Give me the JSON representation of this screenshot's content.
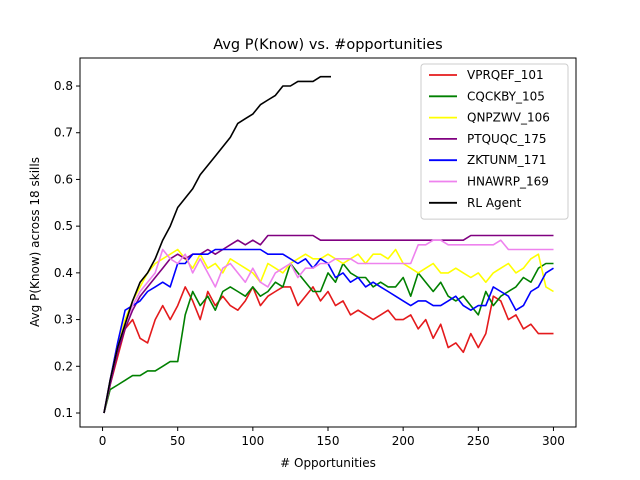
{
  "chart_data": {
    "type": "line",
    "title": "Avg P(Know) vs. #opportunities",
    "xlabel": "# Opportunities",
    "ylabel": "Avg P(Know) across 18 skills",
    "xlim": [
      -15,
      315
    ],
    "ylim": [
      0.07,
      0.86
    ],
    "xticks": [
      "0",
      "50",
      "100",
      "150",
      "200",
      "250",
      "300"
    ],
    "yticks": [
      "0.1",
      "0.2",
      "0.3",
      "0.4",
      "0.5",
      "0.6",
      "0.7",
      "0.8"
    ],
    "grid": false,
    "legend_position": "top-right",
    "series": [
      {
        "name": "VPRQEF_101",
        "color": "#e41a1c",
        "x": [
          1,
          5,
          10,
          15,
          20,
          25,
          30,
          35,
          40,
          45,
          50,
          55,
          60,
          65,
          70,
          75,
          80,
          85,
          90,
          95,
          100,
          105,
          110,
          115,
          120,
          125,
          130,
          135,
          140,
          145,
          150,
          155,
          160,
          165,
          170,
          175,
          180,
          185,
          190,
          195,
          200,
          205,
          210,
          215,
          220,
          225,
          230,
          235,
          240,
          245,
          250,
          255,
          260,
          265,
          270,
          275,
          280,
          285,
          290,
          295,
          300
        ],
        "y": [
          0.1,
          0.16,
          0.22,
          0.28,
          0.3,
          0.26,
          0.25,
          0.3,
          0.33,
          0.3,
          0.33,
          0.37,
          0.34,
          0.3,
          0.36,
          0.33,
          0.35,
          0.33,
          0.32,
          0.34,
          0.37,
          0.33,
          0.35,
          0.36,
          0.37,
          0.37,
          0.33,
          0.35,
          0.37,
          0.34,
          0.36,
          0.33,
          0.34,
          0.31,
          0.32,
          0.31,
          0.3,
          0.31,
          0.32,
          0.3,
          0.3,
          0.31,
          0.28,
          0.3,
          0.26,
          0.29,
          0.24,
          0.25,
          0.23,
          0.27,
          0.24,
          0.27,
          0.35,
          0.34,
          0.3,
          0.31,
          0.28,
          0.29,
          0.27,
          0.27,
          0.27
        ]
      },
      {
        "name": "CQCKBY_105",
        "color": "#008000",
        "x": [
          1,
          5,
          10,
          15,
          20,
          25,
          30,
          35,
          40,
          45,
          50,
          55,
          60,
          65,
          70,
          75,
          80,
          85,
          90,
          95,
          100,
          105,
          110,
          115,
          120,
          125,
          130,
          135,
          140,
          145,
          150,
          155,
          160,
          165,
          170,
          175,
          180,
          185,
          190,
          195,
          200,
          205,
          210,
          215,
          220,
          225,
          230,
          235,
          240,
          245,
          250,
          255,
          260,
          265,
          270,
          275,
          280,
          285,
          290,
          295,
          300
        ],
        "y": [
          0.1,
          0.15,
          0.16,
          0.17,
          0.18,
          0.18,
          0.19,
          0.19,
          0.2,
          0.21,
          0.21,
          0.31,
          0.36,
          0.33,
          0.35,
          0.32,
          0.36,
          0.37,
          0.36,
          0.35,
          0.37,
          0.35,
          0.36,
          0.38,
          0.37,
          0.42,
          0.4,
          0.38,
          0.36,
          0.36,
          0.4,
          0.38,
          0.42,
          0.4,
          0.39,
          0.39,
          0.37,
          0.38,
          0.37,
          0.37,
          0.39,
          0.35,
          0.4,
          0.38,
          0.36,
          0.38,
          0.35,
          0.34,
          0.35,
          0.33,
          0.31,
          0.36,
          0.33,
          0.35,
          0.36,
          0.37,
          0.39,
          0.38,
          0.41,
          0.42,
          0.42
        ]
      },
      {
        "name": "QNPZWV_106",
        "color": "#ffff00",
        "x": [
          1,
          5,
          10,
          15,
          20,
          25,
          30,
          35,
          40,
          45,
          50,
          55,
          60,
          65,
          70,
          75,
          80,
          85,
          90,
          95,
          100,
          105,
          110,
          115,
          120,
          125,
          130,
          135,
          140,
          145,
          150,
          155,
          160,
          165,
          170,
          175,
          180,
          185,
          190,
          195,
          200,
          205,
          210,
          215,
          220,
          225,
          230,
          235,
          240,
          245,
          250,
          255,
          260,
          265,
          270,
          275,
          280,
          285,
          290,
          295,
          300
        ],
        "y": [
          0.1,
          0.16,
          0.24,
          0.3,
          0.34,
          0.37,
          0.4,
          0.42,
          0.43,
          0.44,
          0.45,
          0.43,
          0.41,
          0.44,
          0.41,
          0.42,
          0.4,
          0.43,
          0.42,
          0.41,
          0.4,
          0.38,
          0.42,
          0.41,
          0.4,
          0.42,
          0.43,
          0.44,
          0.43,
          0.43,
          0.44,
          0.43,
          0.42,
          0.43,
          0.44,
          0.42,
          0.44,
          0.44,
          0.43,
          0.45,
          0.42,
          0.41,
          0.4,
          0.41,
          0.42,
          0.4,
          0.4,
          0.41,
          0.4,
          0.39,
          0.4,
          0.38,
          0.4,
          0.41,
          0.42,
          0.4,
          0.41,
          0.43,
          0.44,
          0.37,
          0.36
        ]
      },
      {
        "name": "PTQUQC_175",
        "color": "#800080",
        "x": [
          1,
          5,
          10,
          15,
          20,
          25,
          30,
          35,
          40,
          45,
          50,
          55,
          60,
          65,
          70,
          75,
          80,
          85,
          90,
          95,
          100,
          105,
          110,
          115,
          120,
          125,
          130,
          135,
          140,
          145,
          150,
          155,
          160,
          165,
          170,
          175,
          180,
          185,
          190,
          195,
          200,
          205,
          210,
          215,
          220,
          225,
          230,
          235,
          240,
          245,
          250,
          255,
          260,
          265,
          270,
          275,
          280,
          285,
          290,
          295,
          300
        ],
        "y": [
          0.1,
          0.16,
          0.23,
          0.28,
          0.32,
          0.35,
          0.37,
          0.39,
          0.41,
          0.43,
          0.44,
          0.43,
          0.44,
          0.44,
          0.45,
          0.44,
          0.45,
          0.46,
          0.47,
          0.46,
          0.47,
          0.46,
          0.48,
          0.48,
          0.48,
          0.48,
          0.48,
          0.48,
          0.48,
          0.47,
          0.47,
          0.47,
          0.47,
          0.47,
          0.47,
          0.47,
          0.47,
          0.47,
          0.47,
          0.47,
          0.47,
          0.47,
          0.47,
          0.47,
          0.47,
          0.47,
          0.47,
          0.47,
          0.47,
          0.48,
          0.48,
          0.48,
          0.48,
          0.48,
          0.48,
          0.48,
          0.48,
          0.48,
          0.48,
          0.48,
          0.48
        ]
      },
      {
        "name": "ZKTUNM_171",
        "color": "#0000ff",
        "x": [
          1,
          5,
          10,
          15,
          20,
          25,
          30,
          35,
          40,
          45,
          50,
          55,
          60,
          65,
          70,
          75,
          80,
          85,
          90,
          95,
          100,
          105,
          110,
          115,
          120,
          125,
          130,
          135,
          140,
          145,
          150,
          155,
          160,
          165,
          170,
          175,
          180,
          185,
          190,
          195,
          200,
          205,
          210,
          215,
          220,
          225,
          230,
          235,
          240,
          245,
          250,
          255,
          260,
          265,
          270,
          275,
          280,
          285,
          290,
          295,
          300
        ],
        "y": [
          0.1,
          0.17,
          0.25,
          0.32,
          0.33,
          0.34,
          0.36,
          0.37,
          0.38,
          0.37,
          0.42,
          0.42,
          0.44,
          0.44,
          0.44,
          0.45,
          0.45,
          0.45,
          0.45,
          0.45,
          0.45,
          0.45,
          0.44,
          0.44,
          0.44,
          0.43,
          0.42,
          0.43,
          0.41,
          0.43,
          0.42,
          0.39,
          0.4,
          0.38,
          0.39,
          0.37,
          0.38,
          0.37,
          0.36,
          0.35,
          0.34,
          0.33,
          0.34,
          0.34,
          0.33,
          0.33,
          0.34,
          0.35,
          0.33,
          0.32,
          0.33,
          0.33,
          0.37,
          0.36,
          0.35,
          0.32,
          0.33,
          0.36,
          0.37,
          0.4,
          0.41
        ]
      },
      {
        "name": "HNAWRP_169",
        "color": "#ee82ee",
        "x": [
          1,
          5,
          10,
          15,
          20,
          25,
          30,
          35,
          40,
          45,
          50,
          55,
          60,
          65,
          70,
          75,
          80,
          85,
          90,
          95,
          100,
          105,
          110,
          115,
          120,
          125,
          130,
          135,
          140,
          145,
          150,
          155,
          160,
          165,
          170,
          175,
          180,
          185,
          190,
          195,
          200,
          205,
          210,
          215,
          220,
          225,
          230,
          235,
          240,
          245,
          250,
          255,
          260,
          265,
          270,
          275,
          280,
          285,
          290,
          295,
          300
        ],
        "y": [
          0.1,
          0.17,
          0.24,
          0.29,
          0.33,
          0.36,
          0.38,
          0.4,
          0.45,
          0.43,
          0.42,
          0.44,
          0.4,
          0.43,
          0.4,
          0.37,
          0.41,
          0.42,
          0.4,
          0.38,
          0.41,
          0.38,
          0.37,
          0.4,
          0.41,
          0.42,
          0.39,
          0.41,
          0.41,
          0.42,
          0.42,
          0.43,
          0.43,
          0.43,
          0.42,
          0.42,
          0.42,
          0.42,
          0.42,
          0.42,
          0.42,
          0.42,
          0.46,
          0.46,
          0.47,
          0.47,
          0.46,
          0.46,
          0.46,
          0.46,
          0.46,
          0.46,
          0.46,
          0.47,
          0.45,
          0.45,
          0.45,
          0.45,
          0.45,
          0.45,
          0.45
        ]
      },
      {
        "name": "RL Agent",
        "color": "#000000",
        "x": [
          1,
          5,
          10,
          15,
          20,
          25,
          30,
          35,
          40,
          45,
          50,
          55,
          60,
          65,
          70,
          75,
          80,
          85,
          90,
          95,
          100,
          105,
          110,
          115,
          120,
          125,
          130,
          135,
          140,
          145,
          150,
          152
        ],
        "y": [
          0.1,
          0.17,
          0.24,
          0.29,
          0.34,
          0.38,
          0.4,
          0.43,
          0.47,
          0.5,
          0.54,
          0.56,
          0.58,
          0.61,
          0.63,
          0.65,
          0.67,
          0.69,
          0.72,
          0.73,
          0.74,
          0.76,
          0.77,
          0.78,
          0.8,
          0.8,
          0.81,
          0.81,
          0.81,
          0.82,
          0.82,
          0.82
        ]
      }
    ]
  }
}
